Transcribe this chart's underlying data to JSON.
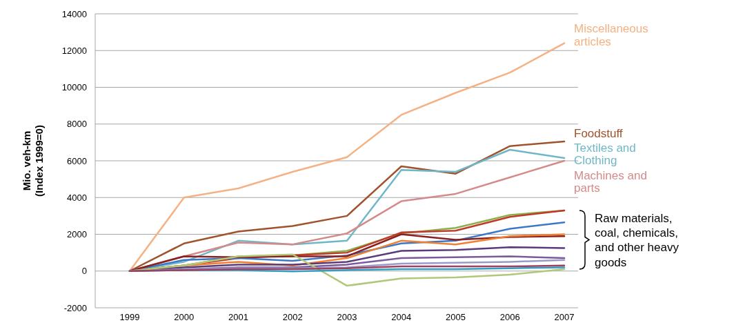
{
  "chart_data": {
    "type": "line",
    "ylabel": "Mio. veh-km (Index 1999=0)",
    "categories": [
      "1999",
      "2000",
      "2001",
      "2002",
      "2003",
      "2004",
      "2005",
      "2006",
      "2007"
    ],
    "ylim": [
      -2000,
      14000
    ],
    "yticks": [
      -2000,
      0,
      2000,
      4000,
      6000,
      8000,
      10000,
      12000,
      14000
    ],
    "grid": "y",
    "legend": false,
    "marker": "none",
    "series": [
      {
        "name": "Miscellaneous articles",
        "color": "#f4b183",
        "values": [
          0,
          4000,
          4500,
          5400,
          6200,
          8500,
          9700,
          10800,
          12400
        ]
      },
      {
        "name": "Foodstuff",
        "color": "#a0522d",
        "values": [
          0,
          1500,
          2150,
          2450,
          3000,
          5700,
          5300,
          6800,
          7050
        ]
      },
      {
        "name": "Textiles and Clothing",
        "color": "#6fb7c7",
        "values": [
          0,
          500,
          1650,
          1450,
          1650,
          5500,
          5400,
          6600,
          6150
        ]
      },
      {
        "name": "Machines and parts",
        "color": "#d48a8a",
        "values": [
          0,
          800,
          1550,
          1450,
          2050,
          3800,
          4200,
          5100,
          6000
        ]
      },
      {
        "color": "#8ab04a",
        "values": [
          0,
          300,
          800,
          850,
          1100,
          2050,
          2350,
          3050,
          3300
        ]
      },
      {
        "color": "#c0392b",
        "values": [
          0,
          300,
          700,
          850,
          1000,
          2100,
          2200,
          2950,
          3300
        ]
      },
      {
        "color": "#3c78c8",
        "values": [
          0,
          600,
          700,
          550,
          850,
          1500,
          1650,
          2300,
          2650
        ]
      },
      {
        "color": "#8b2020",
        "values": [
          0,
          800,
          750,
          800,
          800,
          2000,
          1700,
          1850,
          1900
        ]
      },
      {
        "color": "#f08030",
        "values": [
          0,
          300,
          500,
          300,
          700,
          1650,
          1450,
          1900,
          2000
        ]
      },
      {
        "color": "#5b3a7a",
        "values": [
          0,
          200,
          350,
          350,
          500,
          1100,
          1150,
          1300,
          1250
        ]
      },
      {
        "color": "#7a5a9a",
        "values": [
          0,
          100,
          200,
          200,
          350,
          700,
          750,
          800,
          700
        ]
      },
      {
        "color": "#9a9ac8",
        "values": [
          0,
          100,
          150,
          150,
          200,
          400,
          450,
          500,
          600
        ]
      },
      {
        "color": "#b0c878",
        "values": [
          0,
          300,
          800,
          900,
          -800,
          -400,
          -350,
          -200,
          100
        ]
      },
      {
        "color": "#30a0c0",
        "values": [
          0,
          50,
          50,
          -20,
          50,
          100,
          100,
          150,
          200
        ]
      },
      {
        "color": "#a04060",
        "values": [
          0,
          50,
          100,
          100,
          150,
          250,
          250,
          250,
          300
        ]
      }
    ],
    "annotations": [
      "Raw materials, coal, chemicals, and other heavy goods"
    ]
  }
}
